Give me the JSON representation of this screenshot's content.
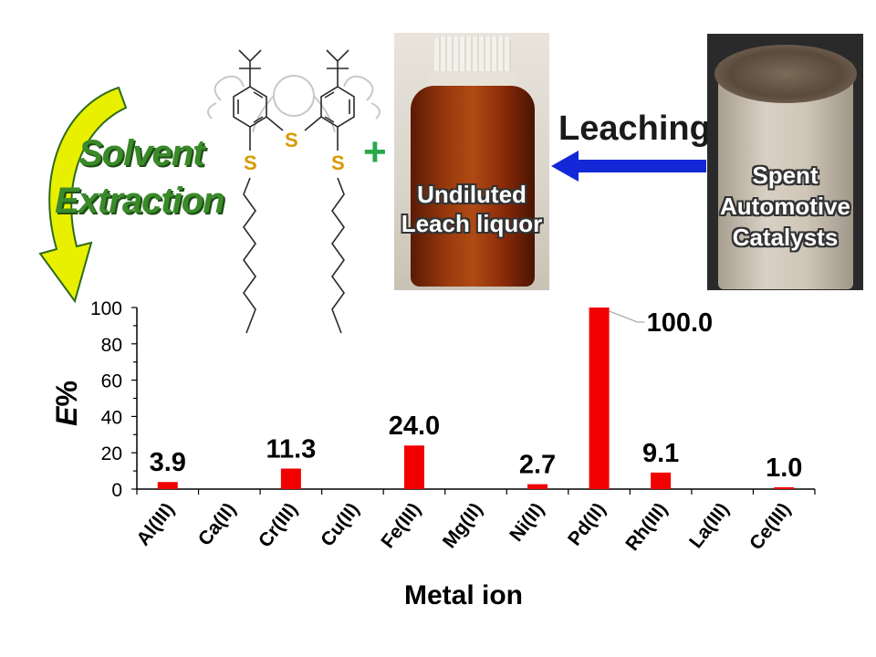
{
  "scheme": {
    "extraction_line1": "Solvent",
    "extraction_line2": "Extraction",
    "plus_sign": "+",
    "sulfur_label": "S",
    "liquor_label_line1": "Undiluted",
    "liquor_label_line2": "Leach liquor",
    "leaching_label": "Leaching",
    "catalyst_label_line1": "Spent",
    "catalyst_label_line2": "Automotive",
    "catalyst_label_line3": "Catalysts",
    "colors": {
      "extraction_text": "#3a8a2a",
      "curved_arrow": "#e8f000",
      "leaching_arrow": "#1428d8",
      "plus_sign": "#2aa84a",
      "sulfur": "#d79a00",
      "leach_liquor": "#8a2a08"
    }
  },
  "chart_data": {
    "type": "bar",
    "categories": [
      "Al(III)",
      "Ca(II)",
      "Cr(III)",
      "Cu(II)",
      "Fe(III)",
      "Mg(II)",
      "Ni(II)",
      "Pd(II)",
      "Rh(III)",
      "La(III)",
      "Ce(III)"
    ],
    "values": [
      3.9,
      0,
      11.3,
      0,
      24.0,
      0,
      2.7,
      100.0,
      9.1,
      0,
      1.0
    ],
    "data_labels": [
      "3.9",
      "",
      "11.3",
      "",
      "24.0",
      "",
      "2.7",
      "100.0",
      "9.1",
      "",
      "1.0"
    ],
    "xlabel": "Metal ion",
    "ylabel_main": "E",
    "ylabel_unit": "%",
    "ylim": [
      0,
      100
    ],
    "yticks": [
      0,
      20,
      40,
      60,
      80,
      100
    ],
    "grid": false,
    "bar_color": "#f00000"
  }
}
